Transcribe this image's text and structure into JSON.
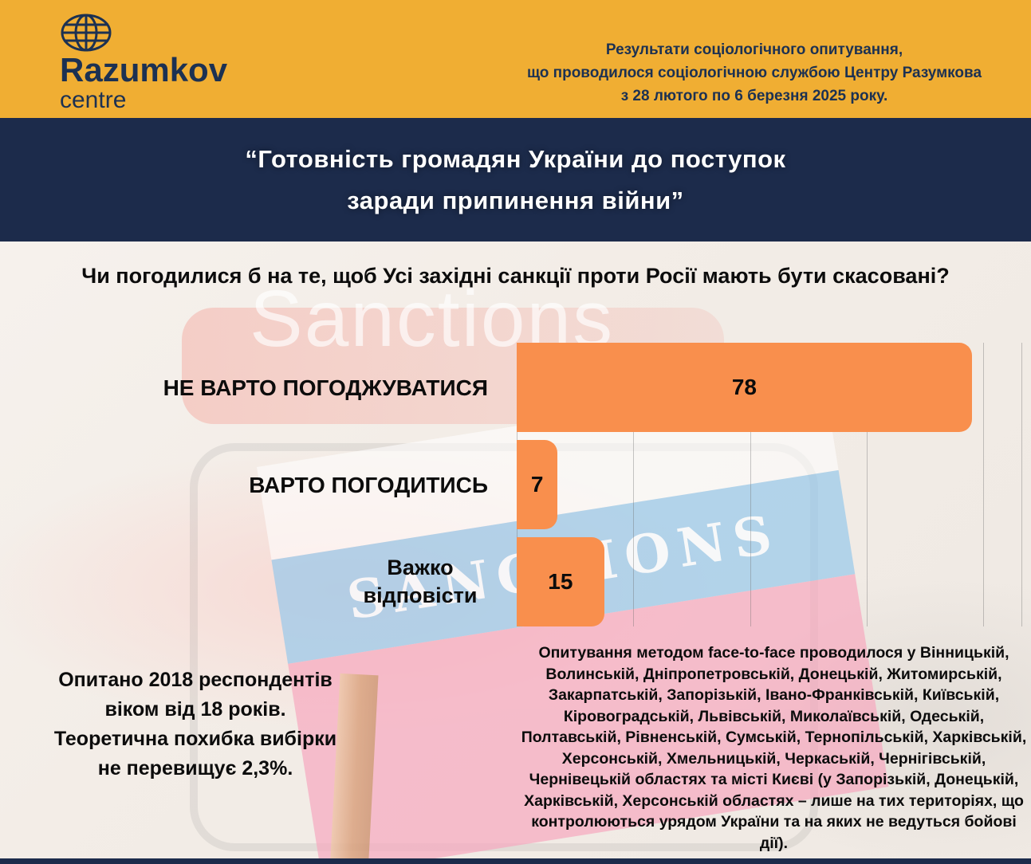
{
  "header": {
    "logo": {
      "name": "Razumkov",
      "sub": "centre"
    },
    "survey_note_lines": [
      "Результати соціологічного опитування,",
      "що проводилося соціологічною службою Центру Разумкова",
      "з 28 лютого по 6 березня 2025 року."
    ]
  },
  "title_lines": [
    "“Готовність громадян України до поступок",
    "заради припинення війни”"
  ],
  "question": "Чи погодилися б на те, щоб Усі західні санкції проти Росії мають бути скасовані?",
  "chart_data": {
    "type": "bar",
    "orientation": "horizontal",
    "categories": [
      "НЕ ВАРТО ПОГОДЖУВАТИСЯ",
      "ВАРТО ПОГОДИТИСЬ",
      "Важко відповісти"
    ],
    "values": [
      78,
      7,
      15
    ],
    "title": "",
    "xlabel": "",
    "ylabel": "",
    "xlim": [
      0,
      86.5
    ],
    "gridlines": [
      0,
      20,
      40,
      60,
      80,
      86.5
    ],
    "legend": "none",
    "bar_color": "#F98F4D",
    "value_labels_inside_bars": true
  },
  "background": {
    "watermark_text": "Sanctions",
    "flag_banner_text": "SANCTIONS"
  },
  "footnotes": {
    "sample_lines": [
      "Опитано 2018 респондентів",
      "віком від 18 років.",
      "Теоретична похибка вибірки",
      "не перевищує 2,3%."
    ],
    "methodology": "Опитування методом face-to-face проводилося у Вінницькій, Волинській, Дніпропетровській, Донецькій, Житомирській, Закарпатській, Запорізькій, Івано-Франківській, Київській, Кіровоградській, Львівській, Миколаївській, Одеській, Полтавській, Рівненській, Сумській, Тернопільській, Харківській, Херсонській, Хмельницькій, Черкаській, Чернігівській, Чернівецькій областях та місті Києві (у Запорізькій, Донецькій, Харківській, Херсонській областях – лише на тих територіях, що контролюються урядом України та на яких не ведуться бойові дії)."
  },
  "colors": {
    "header_yellow": "#F0AE33",
    "navy": "#1C2B4B",
    "logo_navy": "#1C3152",
    "bar_orange": "#F98F4D"
  }
}
